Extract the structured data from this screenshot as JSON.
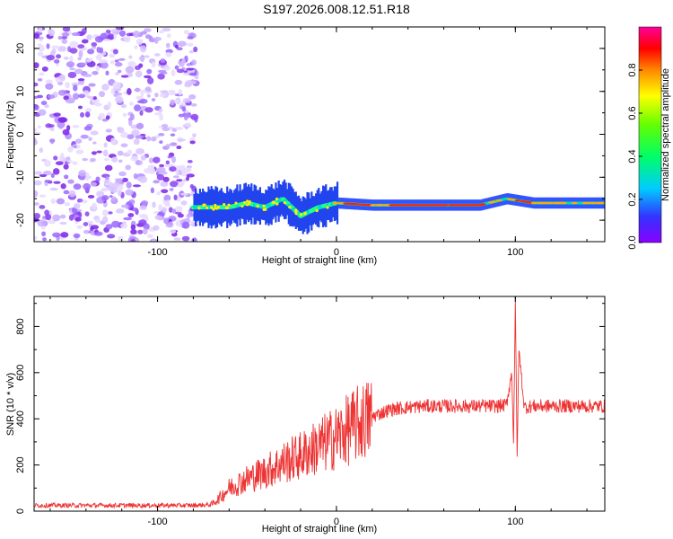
{
  "title": "S197.2026.008.12.51.R18",
  "chart_data": [
    {
      "type": "heatmap",
      "title": "S197.2026.008.12.51.R18",
      "xlabel": "Height of straight line (km)",
      "ylabel": "Frequency (Hz)",
      "xlim": [
        -169,
        150
      ],
      "ylim": [
        -25,
        25
      ],
      "xticks": [
        -100,
        0,
        100
      ],
      "yticks": [
        -20,
        -10,
        0,
        10,
        20
      ],
      "colorbar": {
        "label": "Normalized spectral amplitude",
        "range": [
          0,
          1
        ],
        "ticks": [
          0.0,
          0.2,
          0.4,
          0.6,
          0.8
        ]
      },
      "noise_region_x": [
        -169,
        -80
      ],
      "trace": [
        {
          "x": -80,
          "y": -17
        },
        {
          "x": -70,
          "y": -17
        },
        {
          "x": -60,
          "y": -17
        },
        {
          "x": -50,
          "y": -16
        },
        {
          "x": -40,
          "y": -17
        },
        {
          "x": -30,
          "y": -15
        },
        {
          "x": -20,
          "y": -19
        },
        {
          "x": -10,
          "y": -17
        },
        {
          "x": 0,
          "y": -16
        },
        {
          "x": 20,
          "y": -16.5
        },
        {
          "x": 50,
          "y": -16.5
        },
        {
          "x": 80,
          "y": -16.5
        },
        {
          "x": 95,
          "y": -15
        },
        {
          "x": 110,
          "y": -16
        },
        {
          "x": 130,
          "y": -16
        },
        {
          "x": 150,
          "y": -16
        }
      ]
    },
    {
      "type": "line",
      "xlabel": "Height of straight line (km)",
      "ylabel": "SNR (10 * v/v)",
      "xlim": [
        -169,
        150
      ],
      "ylim": [
        0,
        930
      ],
      "xticks": [
        -100,
        0,
        100
      ],
      "yticks": [
        0,
        200,
        400,
        600,
        800
      ],
      "color": "#ee3333",
      "series": [
        {
          "x": [
            -169,
            -150,
            -130,
            -110,
            -90,
            -80,
            -70,
            -65,
            -60,
            -50,
            -40,
            -30,
            -20,
            -10,
            0,
            10,
            20,
            30,
            40,
            50,
            60,
            70,
            80,
            90,
            95,
            98,
            99,
            100,
            101,
            102,
            105,
            110,
            120,
            130,
            140,
            150
          ],
          "values": [
            25,
            25,
            25,
            25,
            25,
            25,
            28,
            60,
            100,
            140,
            170,
            210,
            240,
            280,
            320,
            370,
            410,
            440,
            450,
            455,
            455,
            455,
            455,
            455,
            460,
            600,
            300,
            900,
            240,
            700,
            450,
            455,
            455,
            455,
            455,
            455
          ]
        }
      ]
    }
  ]
}
